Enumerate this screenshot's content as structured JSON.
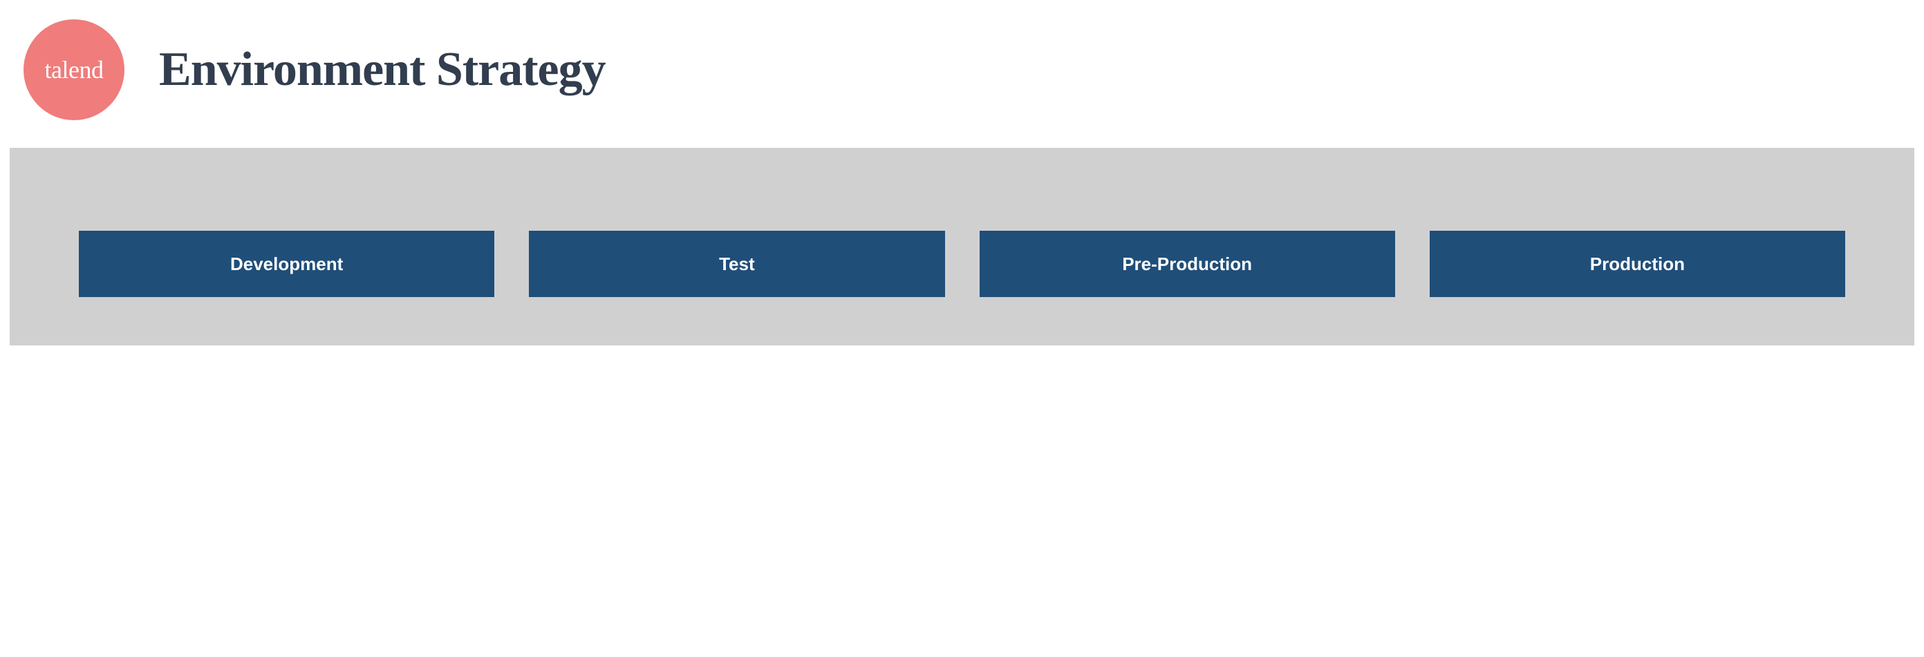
{
  "header": {
    "logo": {
      "text": "talend",
      "background_color": "#f07c7c",
      "text_color": "#ffffff"
    },
    "title": {
      "text": "Environment Strategy",
      "color": "#323e4f",
      "fontsize": 70
    }
  },
  "diagram": {
    "type": "infographic",
    "container_bg": "#d0d0d0",
    "stages": [
      {
        "label": "Development",
        "bg_color": "#1f4e79",
        "text_color": "#ffffff"
      },
      {
        "label": "Test",
        "bg_color": "#1f4e79",
        "text_color": "#ffffff"
      },
      {
        "label": "Pre-Production",
        "bg_color": "#1f4e79",
        "text_color": "#ffffff"
      },
      {
        "label": "Production",
        "bg_color": "#1f4e79",
        "text_color": "#ffffff"
      }
    ],
    "stage_label_fontsize": 26
  }
}
